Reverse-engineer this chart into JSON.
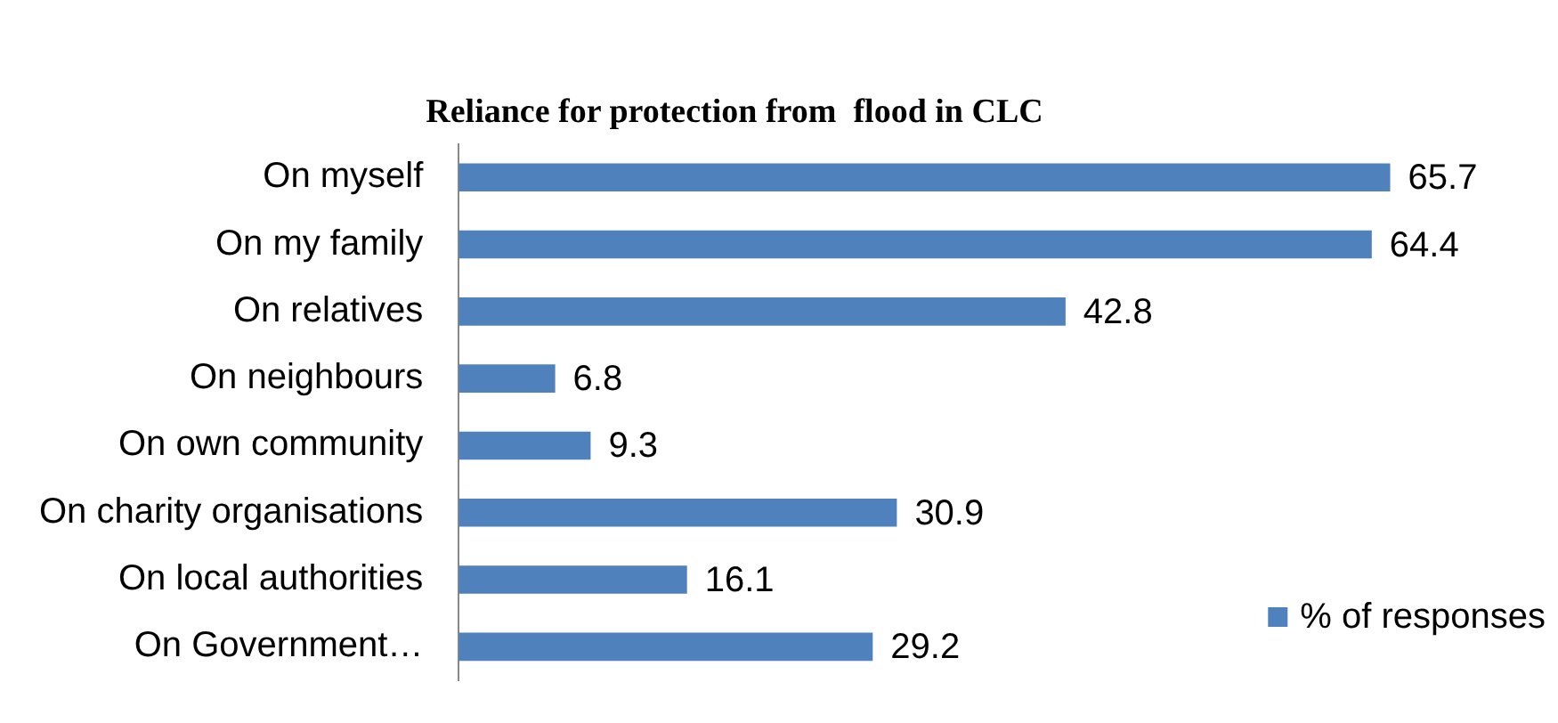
{
  "chart_data": {
    "type": "bar",
    "orientation": "horizontal",
    "title": "Reliance for protection from  flood in CLC",
    "categories": [
      "On myself",
      "On my family",
      "On relatives",
      "On neighbours",
      "On own community",
      "On charity organisations",
      "On local authorities",
      "On Government…"
    ],
    "series": [
      {
        "name": "% of responses",
        "color": "#4f81bd",
        "values": [
          65.7,
          64.4,
          42.8,
          6.8,
          9.3,
          30.9,
          16.1,
          29.2
        ]
      }
    ],
    "data_labels": true,
    "legend": "bottom right",
    "grid": false
  }
}
